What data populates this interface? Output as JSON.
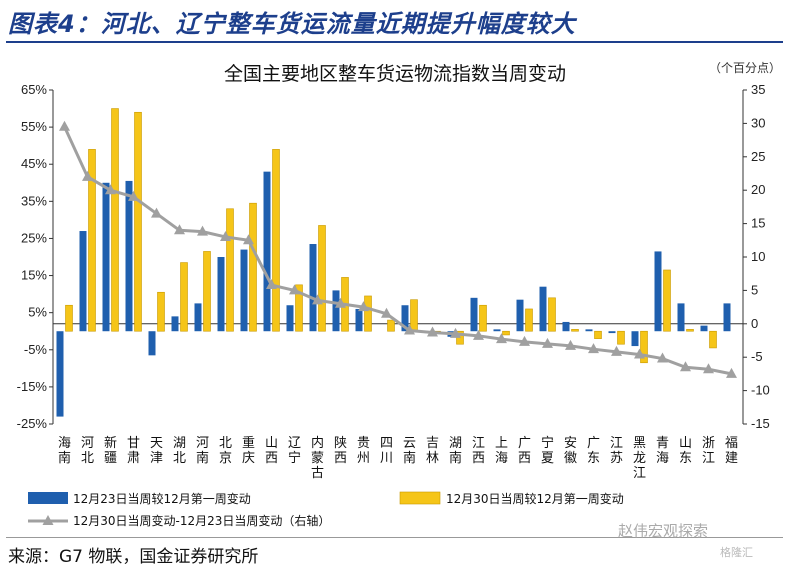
{
  "figure": {
    "title": "图表4：河北、辽宁整车货运流量近期提升幅度较大",
    "source": "来源：G7 物联，国金证券研究所",
    "watermark": "赵伟宏观探索",
    "watermark2": "格隆汇"
  },
  "colors": {
    "series1": "#1f5fae",
    "series2": "#f5c518",
    "series2_edge": "#c99a00",
    "line": "#a0a0a0",
    "title": "#1d3f8c"
  },
  "chart_data": {
    "type": "bar",
    "title": "全国主要地区整车货运物流指数当周变动",
    "unit_note": "（个百分点）",
    "categories": [
      "海南",
      "河北",
      "新疆",
      "甘肃",
      "天津",
      "湖北",
      "河南",
      "北京",
      "重庆",
      "山西",
      "辽宁",
      "内蒙古",
      "陕西",
      "贵州",
      "四川",
      "云南",
      "吉林",
      "湖南",
      "江西",
      "上海",
      "广西",
      "宁夏",
      "安徽",
      "广东",
      "江苏",
      "黑龙江",
      "青海",
      "山东",
      "浙江",
      "福建"
    ],
    "left_axis": {
      "min": -25,
      "max": 65,
      "step": 10,
      "format": "percent",
      "ticks": [
        "65%",
        "55%",
        "45%",
        "35%",
        "25%",
        "15%",
        "5%",
        "-5%",
        "-15%",
        "-25%"
      ]
    },
    "right_axis": {
      "min": -15,
      "max": 35,
      "step": 5,
      "ticks": [
        "35",
        "30",
        "25",
        "20",
        "15",
        "10",
        "5",
        "0",
        "-5",
        "-10",
        "-15"
      ]
    },
    "grid": false,
    "legend_position": "bottom",
    "series": [
      {
        "name": "12月23日当周较12月第一周变动",
        "type": "bar",
        "axis": "left",
        "values": [
          -23,
          27,
          40,
          40.5,
          -6.5,
          4,
          7.5,
          20,
          22,
          43,
          7,
          23.5,
          11,
          6,
          0,
          7,
          -0.5,
          -1.5,
          9,
          0.5,
          8.5,
          12,
          2.5,
          0.5,
          -0.5,
          -4,
          21.5,
          7.5,
          1.5,
          7.5
        ]
      },
      {
        "name": "12月30日当周较12月第一周变动",
        "type": "bar",
        "axis": "left",
        "values": [
          7,
          49,
          60,
          59,
          10.5,
          18.5,
          21.5,
          33,
          34.5,
          49,
          12.5,
          28.5,
          14.5,
          9.5,
          3,
          8.5,
          -0.5,
          -3.5,
          7,
          -1,
          6,
          9,
          0.5,
          -2,
          -3.5,
          -8.5,
          16.5,
          0.5,
          -4.5,
          0
        ]
      },
      {
        "name": "12月30日当周变动-12月23日当周变动（右轴）",
        "type": "line",
        "axis": "right",
        "values": [
          29.5,
          22,
          20,
          19,
          16.5,
          14,
          13.8,
          13,
          12.5,
          5.8,
          5,
          3.5,
          3,
          2.5,
          1.5,
          -1,
          -1.3,
          -1.5,
          -1.8,
          -2.3,
          -2.7,
          -3,
          -3.3,
          -3.8,
          -4.2,
          -4.6,
          -5.2,
          -6.5,
          -6.8,
          -7.5
        ]
      }
    ]
  }
}
